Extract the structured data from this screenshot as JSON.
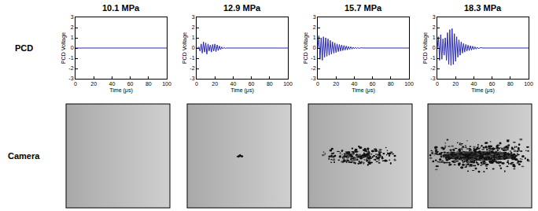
{
  "row_labels": [
    "PCD",
    "Camera"
  ],
  "chart_data": [
    {
      "type": "line",
      "title": "10.1 MPa",
      "x_label": "Time (μs)",
      "y_label": "PCD Voltage",
      "color": "#2b2bb0",
      "grid": false,
      "xlim": [
        0,
        100
      ],
      "ylim": [
        -3,
        3
      ],
      "xticks": [
        0,
        20,
        40,
        60,
        80,
        100
      ],
      "yticks": [
        -3,
        -2,
        -1,
        0,
        1,
        2,
        3
      ],
      "x": [
        0,
        100
      ],
      "values": [
        0,
        0
      ]
    },
    {
      "type": "line",
      "title": "12.9 MPa",
      "x_label": "Time (μs)",
      "y_label": "PCD Voltage",
      "color": "#2b2bb0",
      "grid": false,
      "xlim": [
        0,
        100
      ],
      "ylim": [
        -3,
        3
      ],
      "xticks": [
        0,
        20,
        40,
        60,
        80,
        100
      ],
      "yticks": [
        -3,
        -2,
        -1,
        0,
        1,
        2,
        3
      ],
      "x": [
        0,
        1.2,
        2.5,
        3.7,
        5,
        6.2,
        7.5,
        8.7,
        10,
        11.2,
        12.5,
        13.7,
        15,
        16.2,
        17.5,
        18.7,
        20,
        21.2,
        22.5,
        23.7,
        25,
        26.2,
        27.5,
        28.7,
        30,
        31.2,
        32.5,
        33.7,
        35,
        36.2,
        37.5,
        38.7,
        40,
        41.2,
        42.5,
        43.7,
        45,
        47.5,
        50,
        55,
        100
      ],
      "values": [
        0,
        0,
        0.1,
        -0.3,
        0.4,
        -0.5,
        0.6,
        -0.4,
        0.5,
        -0.6,
        0.4,
        -0.3,
        0.3,
        -0.4,
        0.35,
        -0.3,
        0.4,
        -0.35,
        0.3,
        -0.25,
        0.2,
        -0.15,
        0.1,
        -0.08,
        0.05,
        -0.03,
        0,
        0,
        0,
        0,
        0,
        0,
        0,
        0,
        0,
        0,
        0,
        0,
        0,
        0,
        0
      ]
    },
    {
      "type": "line",
      "title": "15.7 MPa",
      "x_label": "Time (μs)",
      "y_label": "PCD Voltage",
      "color": "#2b2bb0",
      "grid": false,
      "xlim": [
        0,
        100
      ],
      "ylim": [
        -3,
        3
      ],
      "xticks": [
        0,
        20,
        40,
        60,
        80,
        100
      ],
      "yticks": [
        -3,
        -2,
        -1,
        0,
        1,
        2,
        3
      ],
      "x": [
        0,
        1.2,
        2.5,
        3.7,
        5,
        6.2,
        7.5,
        8.7,
        10,
        11.2,
        12.5,
        13.7,
        15,
        16.2,
        17.5,
        18.7,
        20,
        21.2,
        22.5,
        23.7,
        25,
        26.2,
        27.5,
        28.7,
        30,
        31.2,
        32.5,
        33.7,
        35,
        36.2,
        37.5,
        38.7,
        40,
        41.2,
        42.5,
        43.7,
        45,
        47.5,
        50,
        55,
        100
      ],
      "values": [
        0,
        1.2,
        -1.1,
        1.0,
        -1.2,
        1.1,
        -0.9,
        1.0,
        -0.8,
        0.9,
        -0.7,
        0.75,
        -0.6,
        0.6,
        -0.5,
        0.5,
        -0.45,
        0.4,
        -0.35,
        0.35,
        -0.3,
        0.3,
        -0.25,
        0.25,
        -0.2,
        0.2,
        -0.18,
        0.15,
        -0.12,
        0.12,
        -0.1,
        0.08,
        -0.07,
        0.06,
        -0.05,
        0.04,
        -0.03,
        0.02,
        0,
        0,
        0
      ]
    },
    {
      "type": "line",
      "title": "18.3 MPa",
      "x_label": "Time (μs)",
      "y_label": "PCD Voltage",
      "color": "#2b2bb0",
      "grid": false,
      "xlim": [
        0,
        100
      ],
      "ylim": [
        -3,
        3
      ],
      "xticks": [
        0,
        20,
        40,
        60,
        80,
        100
      ],
      "yticks": [
        -3,
        -2,
        -1,
        0,
        1,
        2,
        3
      ],
      "x": [
        0,
        1.2,
        2.5,
        3.7,
        5,
        6.2,
        7.5,
        8.7,
        10,
        11.2,
        12.5,
        13.7,
        15,
        16.2,
        17.5,
        18.7,
        20,
        21.2,
        22.5,
        23.7,
        25,
        26.2,
        27.5,
        28.7,
        30,
        31.2,
        32.5,
        33.7,
        35,
        36.2,
        37.5,
        38.7,
        40,
        41.2,
        42.5,
        43.7,
        45,
        47.5,
        50,
        55,
        100
      ],
      "values": [
        0,
        1.1,
        -1.2,
        1.3,
        -1.1,
        0.9,
        -0.7,
        1.0,
        -1.2,
        1.5,
        -1.6,
        1.8,
        -1.7,
        1.9,
        -1.6,
        1.4,
        -1.3,
        1.1,
        -0.9,
        0.8,
        -0.7,
        0.6,
        -0.5,
        0.45,
        -0.4,
        0.35,
        -0.3,
        0.28,
        -0.25,
        0.22,
        -0.2,
        0.18,
        -0.15,
        0.12,
        -0.1,
        0.08,
        -0.06,
        0.04,
        0,
        0,
        0
      ]
    }
  ]
}
